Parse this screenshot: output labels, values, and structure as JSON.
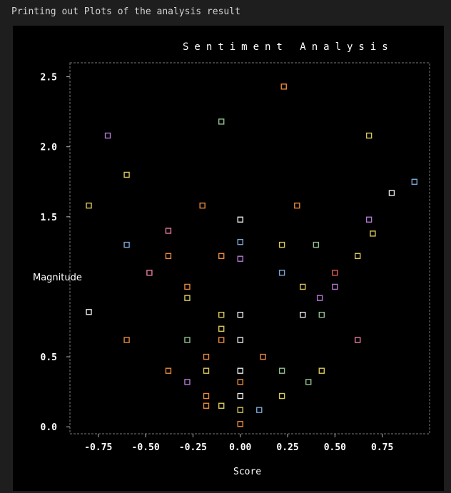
{
  "caption": "Printing out Plots of the analysis result",
  "chart_data": {
    "type": "scatter",
    "title": "Sentiment Analysis",
    "xlabel": "Score",
    "ylabel": "Magnitude",
    "xlim": [
      -0.9,
      1.0
    ],
    "ylim": [
      -0.05,
      2.6
    ],
    "x_ticks": [
      -0.75,
      -0.5,
      -0.25,
      0.0,
      0.25,
      0.5,
      0.75
    ],
    "x_tick_labels": [
      "-0.75",
      "-0.50",
      "-0.25",
      "0.00",
      "0.25",
      "0.50",
      "0.75"
    ],
    "y_ticks": [
      0.0,
      0.5,
      1.5,
      2.0,
      2.5
    ],
    "y_tick_labels": [
      "0.0",
      "0.5",
      "1.5",
      "2.0",
      "2.5"
    ],
    "points": [
      {
        "x": 0.23,
        "y": 2.43,
        "color": "#e8893a"
      },
      {
        "x": -0.1,
        "y": 2.18,
        "color": "#8fbf8f"
      },
      {
        "x": -0.7,
        "y": 2.08,
        "color": "#b07ad0"
      },
      {
        "x": 0.68,
        "y": 2.08,
        "color": "#d8c95a"
      },
      {
        "x": -0.6,
        "y": 1.8,
        "color": "#d8c95a"
      },
      {
        "x": 0.92,
        "y": 1.75,
        "color": "#7aa6d6"
      },
      {
        "x": 0.8,
        "y": 1.67,
        "color": "#e8e8e8"
      },
      {
        "x": -0.8,
        "y": 1.58,
        "color": "#d8c95a"
      },
      {
        "x": -0.2,
        "y": 1.58,
        "color": "#e8893a"
      },
      {
        "x": 0.3,
        "y": 1.58,
        "color": "#e8893a"
      },
      {
        "x": 0.0,
        "y": 1.48,
        "color": "#e8e8e8"
      },
      {
        "x": 0.68,
        "y": 1.48,
        "color": "#b07ad0"
      },
      {
        "x": -0.38,
        "y": 1.4,
        "color": "#e87aa0"
      },
      {
        "x": 0.7,
        "y": 1.38,
        "color": "#d8c95a"
      },
      {
        "x": -0.6,
        "y": 1.3,
        "color": "#7aa6d6"
      },
      {
        "x": 0.0,
        "y": 1.32,
        "color": "#7aa6d6"
      },
      {
        "x": 0.22,
        "y": 1.3,
        "color": "#d8c95a"
      },
      {
        "x": 0.4,
        "y": 1.3,
        "color": "#8fbf8f"
      },
      {
        "x": -0.38,
        "y": 1.22,
        "color": "#e8893a"
      },
      {
        "x": -0.1,
        "y": 1.22,
        "color": "#e8893a"
      },
      {
        "x": 0.0,
        "y": 1.2,
        "color": "#b07ad0"
      },
      {
        "x": 0.62,
        "y": 1.22,
        "color": "#d8c95a"
      },
      {
        "x": -0.48,
        "y": 1.1,
        "color": "#e87aa0"
      },
      {
        "x": 0.22,
        "y": 1.1,
        "color": "#7aa6d6"
      },
      {
        "x": 0.5,
        "y": 1.1,
        "color": "#e85a5a"
      },
      {
        "x": -0.28,
        "y": 1.0,
        "color": "#e8893a"
      },
      {
        "x": 0.33,
        "y": 1.0,
        "color": "#d8c95a"
      },
      {
        "x": 0.5,
        "y": 1.0,
        "color": "#b07ad0"
      },
      {
        "x": -0.28,
        "y": 0.92,
        "color": "#d8c95a"
      },
      {
        "x": 0.42,
        "y": 0.92,
        "color": "#b07ad0"
      },
      {
        "x": -0.8,
        "y": 0.82,
        "color": "#e8e8e8"
      },
      {
        "x": -0.1,
        "y": 0.8,
        "color": "#d8c95a"
      },
      {
        "x": 0.0,
        "y": 0.8,
        "color": "#e8e8e8"
      },
      {
        "x": 0.33,
        "y": 0.8,
        "color": "#e8e8e8"
      },
      {
        "x": 0.43,
        "y": 0.8,
        "color": "#8fbf8f"
      },
      {
        "x": -0.1,
        "y": 0.7,
        "color": "#d8c95a"
      },
      {
        "x": -0.6,
        "y": 0.62,
        "color": "#e8893a"
      },
      {
        "x": -0.28,
        "y": 0.62,
        "color": "#8fbf8f"
      },
      {
        "x": -0.1,
        "y": 0.62,
        "color": "#e8893a"
      },
      {
        "x": 0.0,
        "y": 0.62,
        "color": "#e8e8e8"
      },
      {
        "x": 0.62,
        "y": 0.62,
        "color": "#e87aa0"
      },
      {
        "x": -0.18,
        "y": 0.5,
        "color": "#e8893a"
      },
      {
        "x": 0.12,
        "y": 0.5,
        "color": "#e8893a"
      },
      {
        "x": -0.38,
        "y": 0.4,
        "color": "#e8893a"
      },
      {
        "x": -0.18,
        "y": 0.4,
        "color": "#d8c95a"
      },
      {
        "x": 0.0,
        "y": 0.4,
        "color": "#e8e8e8"
      },
      {
        "x": 0.22,
        "y": 0.4,
        "color": "#8fbf8f"
      },
      {
        "x": 0.43,
        "y": 0.4,
        "color": "#d8c95a"
      },
      {
        "x": -0.28,
        "y": 0.32,
        "color": "#b07ad0"
      },
      {
        "x": 0.0,
        "y": 0.32,
        "color": "#e8893a"
      },
      {
        "x": 0.36,
        "y": 0.32,
        "color": "#8fbf8f"
      },
      {
        "x": -0.18,
        "y": 0.22,
        "color": "#e8893a"
      },
      {
        "x": 0.0,
        "y": 0.22,
        "color": "#e8e8e8"
      },
      {
        "x": 0.22,
        "y": 0.22,
        "color": "#d8c95a"
      },
      {
        "x": -0.18,
        "y": 0.15,
        "color": "#e8893a"
      },
      {
        "x": -0.1,
        "y": 0.15,
        "color": "#d8c95a"
      },
      {
        "x": 0.0,
        "y": 0.12,
        "color": "#d8c95a"
      },
      {
        "x": 0.1,
        "y": 0.12,
        "color": "#7aa6d6"
      },
      {
        "x": 0.0,
        "y": 0.02,
        "color": "#e8893a"
      }
    ]
  }
}
